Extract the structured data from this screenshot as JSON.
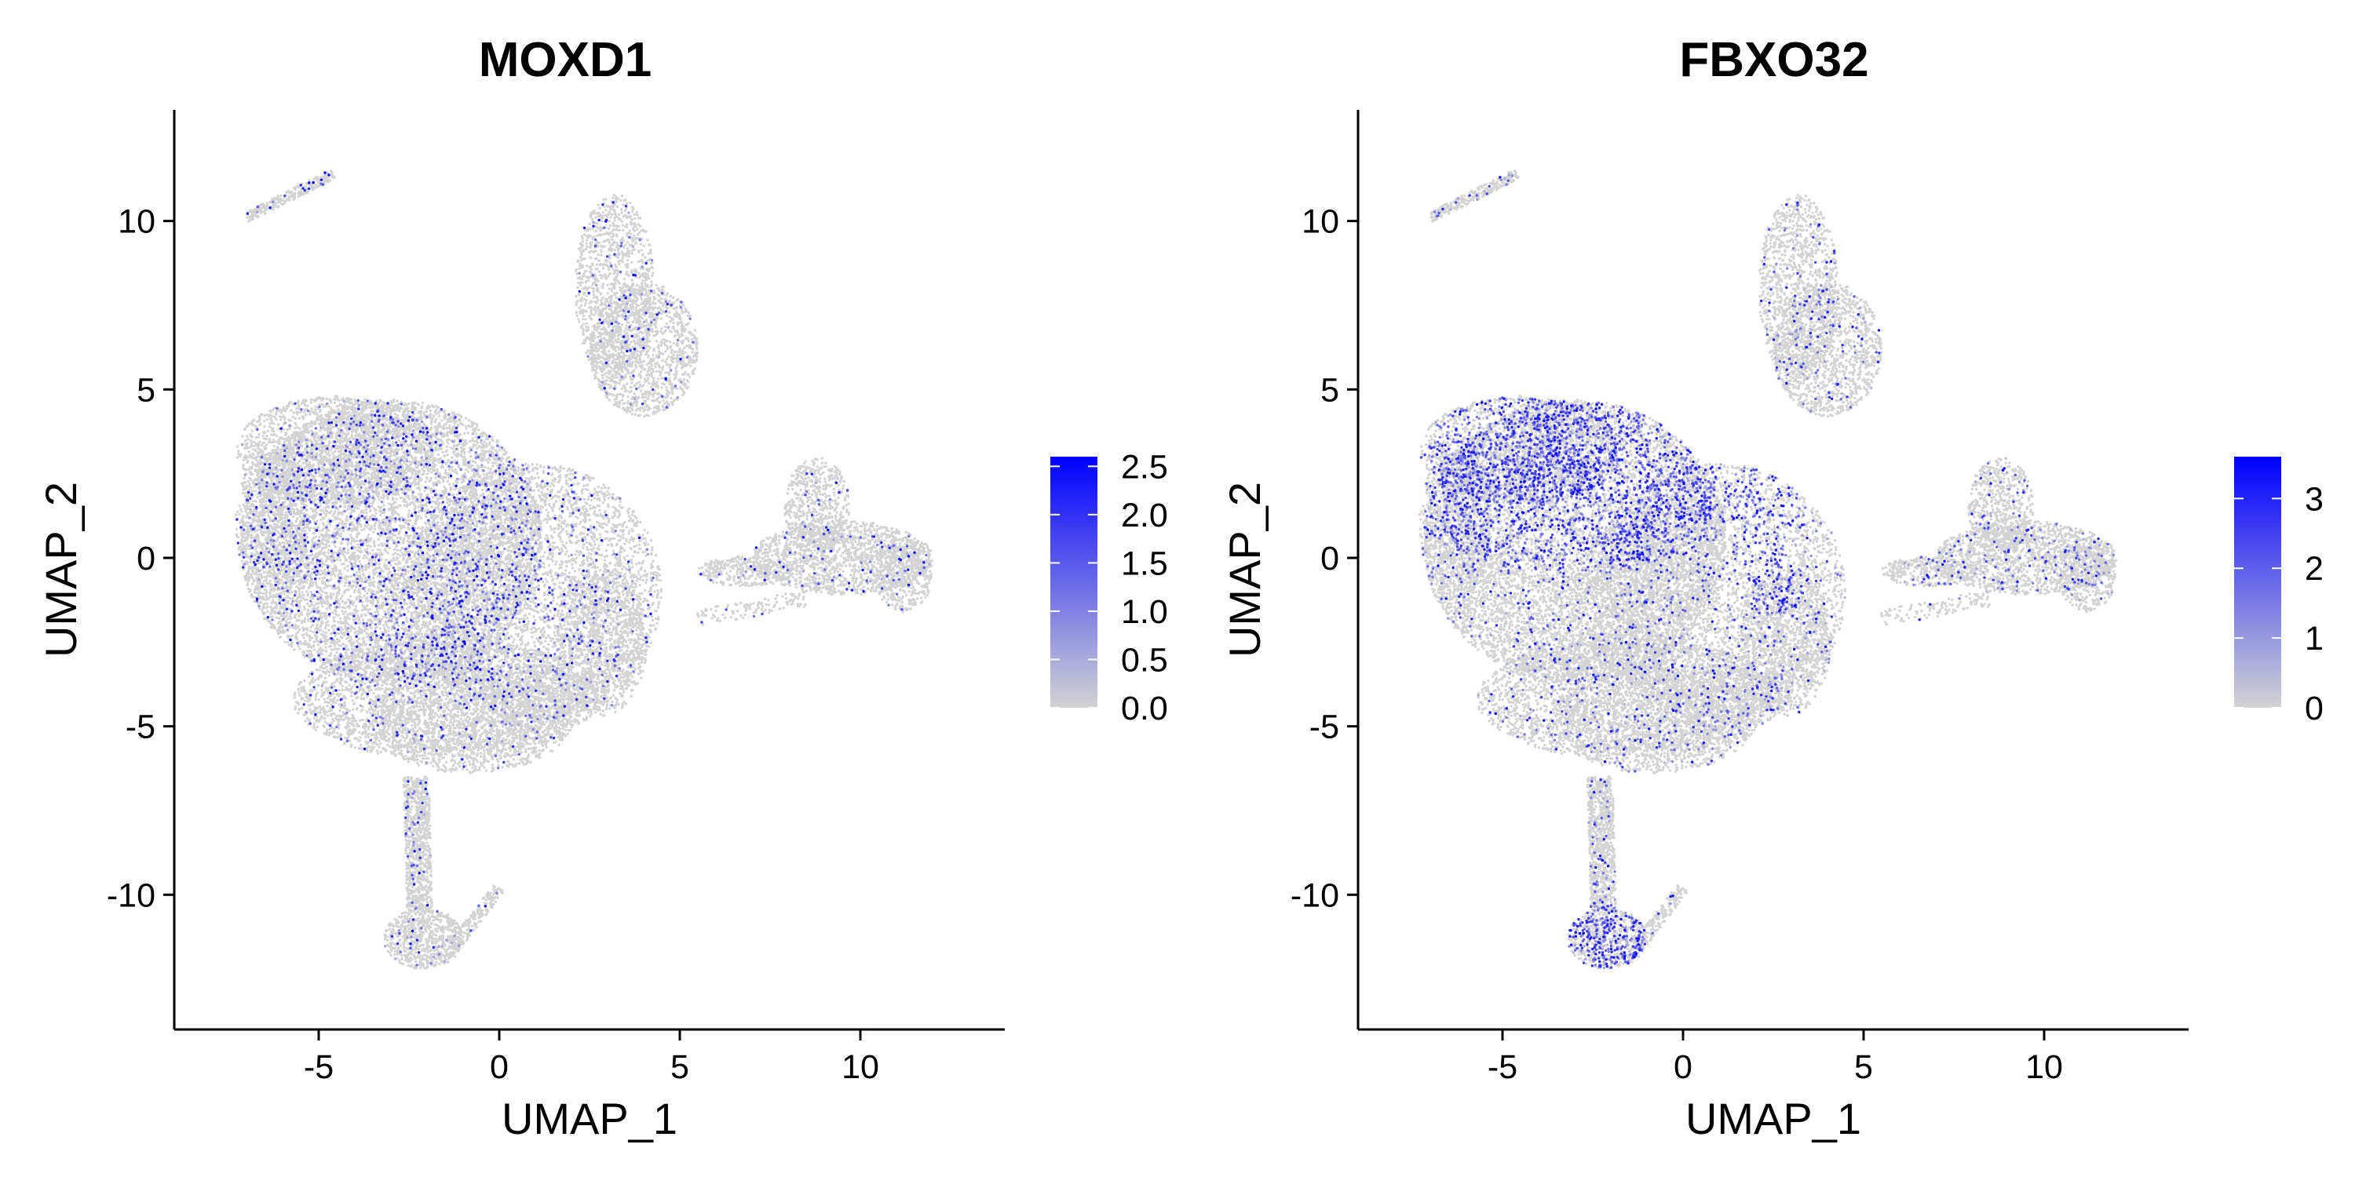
{
  "chart_data": [
    {
      "type": "scatter",
      "title": "MOXD1",
      "xlabel": "UMAP_1",
      "ylabel": "UMAP_2",
      "xlim": [
        -9,
        14
      ],
      "ylim": [
        -14,
        13.3
      ],
      "xticks": [
        -5,
        0,
        5,
        10
      ],
      "xtick_labels": [
        "-5",
        "0",
        "5",
        "10"
      ],
      "yticks": [
        -10,
        -5,
        0,
        5,
        10
      ],
      "ytick_labels": [
        "-10",
        "-5",
        "0",
        "5",
        "10"
      ],
      "grid": false,
      "color_scale": {
        "low_color": "#d3d3d3",
        "high_color": "#0000ff",
        "min": 0,
        "max": 2.6,
        "ticks": [
          0.0,
          0.5,
          1.0,
          1.5,
          2.0,
          2.5
        ],
        "tick_labels": [
          "0.0",
          "0.5",
          "1.0",
          "1.5",
          "2.0",
          "2.5"
        ],
        "legend_placement": "right"
      },
      "expression_rate": 0.045,
      "hotspots": [
        {
          "cx": -2,
          "cy": 0,
          "rx": 5.5,
          "ry": 4.5,
          "weight": 3
        }
      ]
    },
    {
      "type": "scatter",
      "title": "FBXO32",
      "xlabel": "UMAP_1",
      "ylabel": "UMAP_2",
      "xlim": [
        -9,
        14
      ],
      "ylim": [
        -14,
        13.3
      ],
      "xticks": [
        -5,
        0,
        5,
        10
      ],
      "xtick_labels": [
        "-5",
        "0",
        "5",
        "10"
      ],
      "yticks": [
        -10,
        -5,
        0,
        5,
        10
      ],
      "ytick_labels": [
        "-10",
        "-5",
        "0",
        "5",
        "10"
      ],
      "grid": false,
      "color_scale": {
        "low_color": "#d3d3d3",
        "high_color": "#0000ff",
        "min": 0,
        "max": 3.6,
        "ticks": [
          0,
          1,
          2,
          3
        ],
        "tick_labels": [
          "0",
          "1",
          "2",
          "3"
        ],
        "legend_placement": "right"
      },
      "expression_rate": 0.07,
      "hotspots": [
        {
          "cx": -3,
          "cy": 2.5,
          "rx": 5,
          "ry": 3,
          "weight": 6
        },
        {
          "cx": 2.5,
          "cy": 0.5,
          "rx": 1.2,
          "ry": 2.5,
          "weight": 5
        },
        {
          "cx": -2.2,
          "cy": -11.3,
          "rx": 1.3,
          "ry": 1.1,
          "weight": 7
        }
      ]
    }
  ],
  "clusters": [
    {
      "type": "ellipse",
      "cx": -3,
      "cy": 0.5,
      "rx": 4.2,
      "ry": 4.2,
      "n": 9000
    },
    {
      "type": "ellipse",
      "cx": 1,
      "cy": -1,
      "rx": 3.5,
      "ry": 3.8,
      "n": 4500
    },
    {
      "type": "ellipse",
      "cx": -1.5,
      "cy": -4.2,
      "rx": 4.2,
      "ry": 1.8,
      "n": 3000
    },
    {
      "type": "ellipse",
      "cx": -0.8,
      "cy": -4.8,
      "rx": 2.8,
      "ry": 1.6,
      "n": 1500
    },
    {
      "type": "ellipse",
      "cx": 2.8,
      "cy": -2.5,
      "rx": 1.3,
      "ry": 2.2,
      "n": 1000
    },
    {
      "type": "ellipse",
      "cx": -4.5,
      "cy": 3.2,
      "rx": 2.8,
      "ry": 1.6,
      "n": 1800
    },
    {
      "type": "ellipse",
      "cx": -6.3,
      "cy": 1.0,
      "rx": 1.0,
      "ry": 2.2,
      "n": 700
    },
    {
      "type": "ellipse",
      "cx": 3.2,
      "cy": 8.0,
      "rx": 1.1,
      "ry": 2.8,
      "n": 1200
    },
    {
      "type": "ellipse",
      "cx": 4.0,
      "cy": 6.2,
      "rx": 1.5,
      "ry": 2.0,
      "n": 1300
    },
    {
      "type": "ellipse",
      "cx": 9.5,
      "cy": 0.0,
      "rx": 2.5,
      "ry": 1.1,
      "n": 1500
    },
    {
      "type": "ellipse",
      "cx": 8.8,
      "cy": 1.5,
      "rx": 0.9,
      "ry": 1.5,
      "n": 600
    },
    {
      "type": "ellipse",
      "cx": 11.2,
      "cy": -0.5,
      "rx": 0.8,
      "ry": 1.1,
      "n": 400
    },
    {
      "type": "ellipse",
      "cx": 6.8,
      "cy": -0.4,
      "rx": 1.3,
      "ry": 0.45,
      "n": 350
    },
    {
      "type": "segment",
      "x1": 5.5,
      "y1": -1.8,
      "x2": 8.5,
      "y2": -1.2,
      "w": 0.25,
      "n": 120
    },
    {
      "type": "segment",
      "x1": -2.3,
      "y1": -6.5,
      "x2": -2.2,
      "y2": -10.5,
      "w": 0.35,
      "n": 900
    },
    {
      "type": "ellipse",
      "cx": -2.1,
      "cy": -11.3,
      "rx": 1.1,
      "ry": 0.9,
      "n": 700
    },
    {
      "type": "segment",
      "x1": -1.3,
      "y1": -11.6,
      "x2": 0.0,
      "y2": -9.8,
      "w": 0.18,
      "n": 180
    },
    {
      "type": "segment",
      "x1": -7.0,
      "y1": 10.1,
      "x2": -4.6,
      "y2": 11.4,
      "w": 0.15,
      "n": 260
    }
  ]
}
